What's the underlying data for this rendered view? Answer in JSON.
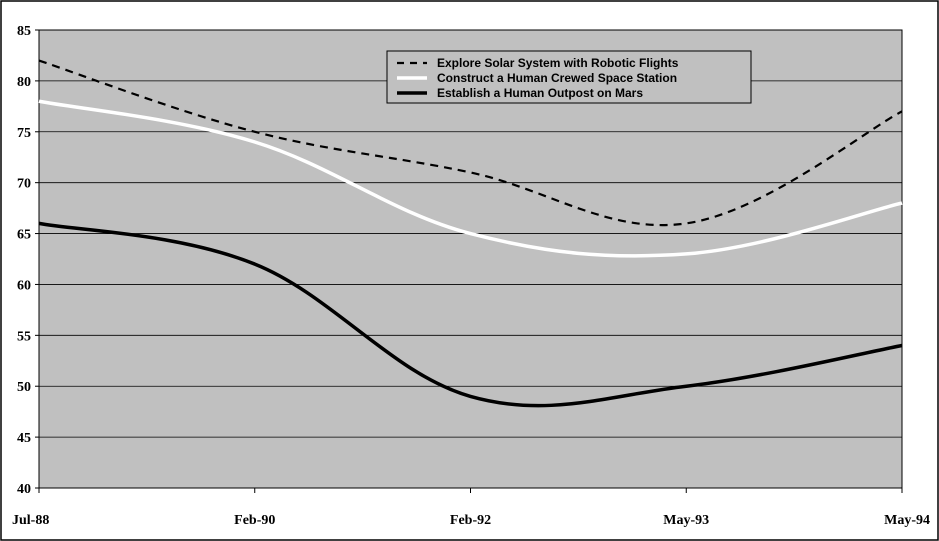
{
  "chart_data": {
    "type": "line",
    "title": "",
    "xlabel": "",
    "ylabel": "",
    "categories": [
      "Jul-88",
      "Feb-90",
      "Feb-92",
      "May-93",
      "May-94"
    ],
    "ylim": [
      40,
      85
    ],
    "yticks": [
      40,
      45,
      50,
      55,
      60,
      65,
      70,
      75,
      80,
      85
    ],
    "grid": true,
    "legend_position": "top-center",
    "plot_background": "#c0c0c0",
    "series": [
      {
        "name": "Explore Solar System with Robotic Flights",
        "style": "dashed",
        "color": "#000000",
        "values": [
          82,
          75,
          71,
          66,
          77
        ]
      },
      {
        "name": "Construct a Human Crewed Space Station",
        "style": "solid",
        "color": "#ffffff",
        "values": [
          78,
          74,
          65,
          63,
          68
        ]
      },
      {
        "name": "Establish a Human Outpost on Mars",
        "style": "solid",
        "color": "#000000",
        "values": [
          66,
          62,
          49,
          50,
          54
        ]
      }
    ]
  }
}
